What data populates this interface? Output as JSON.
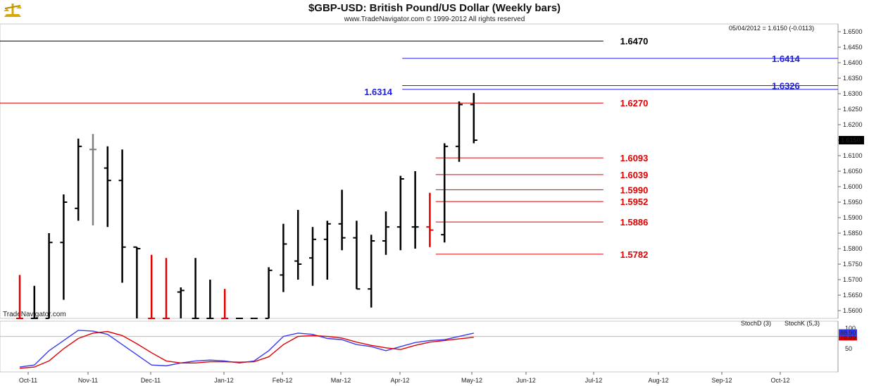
{
  "header": {
    "title": "$GBP-USD:  British Pound/US Dollar  (Weekly bars)",
    "subtitle": "www.TradeNavigator.com © 1999-2012 All rights reserved",
    "readout": "05/04/2012 = 1.6150 (-0.0113)",
    "watermark": "TradeNavigator.com",
    "logo_icon": "scales-logo-icon"
  },
  "chart_data": [
    {
      "type": "ohlc",
      "title": "$GBP-USD:  British Pound/US Dollar  (Weekly bars)",
      "ylim": [
        1.5575,
        1.6525
      ],
      "y_ticks": [
        "1.6500",
        "1.6450",
        "1.6400",
        "1.6350",
        "1.6300",
        "1.6250",
        "1.6200",
        "1.6150",
        "1.6100",
        "1.6050",
        "1.6000",
        "1.5950",
        "1.5900",
        "1.5850",
        "1.5800",
        "1.5750",
        "1.5700",
        "1.5650",
        "1.5600"
      ],
      "x_labels": [
        "Oct-11",
        "Nov-11",
        "Dec-11",
        "Jan-12",
        "Feb-12",
        "Mar-12",
        "Apr-12",
        "May-12",
        "Jun-12",
        "Jul-12",
        "Aug-12",
        "Sep-12",
        "Oct-12"
      ],
      "last_price": "1.6150",
      "bars": [
        {
          "date": "2011-09-30",
          "open": 1.5575,
          "high": 1.5715,
          "low": 1.5575,
          "close": 1.5575,
          "color": "#e00000"
        },
        {
          "date": "2011-10-07",
          "open": 1.5575,
          "high": 1.568,
          "low": 1.5575,
          "close": 1.5575,
          "color": "#000000"
        },
        {
          "date": "2011-10-14",
          "open": 1.5575,
          "high": 1.585,
          "low": 1.5575,
          "close": 1.582,
          "color": "#000000"
        },
        {
          "date": "2011-10-21",
          "open": 1.582,
          "high": 1.5975,
          "low": 1.5635,
          "close": 1.595,
          "color": "#000000"
        },
        {
          "date": "2011-10-28",
          "open": 1.593,
          "high": 1.6155,
          "low": 1.589,
          "close": 1.613,
          "color": "#000000"
        },
        {
          "date": "2011-11-04",
          "open": 1.612,
          "high": 1.617,
          "low": 1.5875,
          "close": 1.612,
          "color": "#808080"
        },
        {
          "date": "2011-11-11",
          "open": 1.606,
          "high": 1.613,
          "low": 1.587,
          "close": 1.602,
          "color": "#000000"
        },
        {
          "date": "2011-11-18",
          "open": 1.602,
          "high": 1.612,
          "low": 1.569,
          "close": 1.5805,
          "color": "#000000"
        },
        {
          "date": "2011-11-25",
          "open": 1.5805,
          "high": 1.5805,
          "low": 1.5575,
          "close": 1.58,
          "color": "#000000"
        },
        {
          "date": "2011-12-02",
          "open": 1.5575,
          "high": 1.578,
          "low": 1.5575,
          "close": 1.5575,
          "color": "#e00000"
        },
        {
          "date": "2011-12-09",
          "open": 1.5575,
          "high": 1.577,
          "low": 1.5575,
          "close": 1.5575,
          "color": "#e00000"
        },
        {
          "date": "2011-12-16",
          "open": 1.566,
          "high": 1.5675,
          "low": 1.5575,
          "close": 1.5665,
          "color": "#000000"
        },
        {
          "date": "2011-12-23",
          "open": 1.5575,
          "high": 1.577,
          "low": 1.5575,
          "close": 1.5575,
          "color": "#000000"
        },
        {
          "date": "2011-12-30",
          "open": 1.5575,
          "high": 1.57,
          "low": 1.5575,
          "close": 1.5575,
          "color": "#000000"
        },
        {
          "date": "2012-01-06",
          "open": 1.5575,
          "high": 1.567,
          "low": 1.5575,
          "close": 1.5575,
          "color": "#e00000"
        },
        {
          "date": "2012-01-13",
          "open": 1.5575,
          "high": 1.5575,
          "low": 1.5575,
          "close": 1.5575,
          "color": "#000000"
        },
        {
          "date": "2012-01-20",
          "open": 1.5575,
          "high": 1.5575,
          "low": 1.5575,
          "close": 1.5575,
          "color": "#000000"
        },
        {
          "date": "2012-01-27",
          "open": 1.5575,
          "high": 1.574,
          "low": 1.5575,
          "close": 1.573,
          "color": "#000000"
        },
        {
          "date": "2012-02-03",
          "open": 1.5715,
          "high": 1.588,
          "low": 1.566,
          "close": 1.5815,
          "color": "#000000"
        },
        {
          "date": "2012-02-10",
          "open": 1.576,
          "high": 1.5925,
          "low": 1.57,
          "close": 1.575,
          "color": "#000000"
        },
        {
          "date": "2012-02-17",
          "open": 1.577,
          "high": 1.587,
          "low": 1.568,
          "close": 1.583,
          "color": "#000000"
        },
        {
          "date": "2012-02-24",
          "open": 1.583,
          "high": 1.589,
          "low": 1.57,
          "close": 1.588,
          "color": "#000000"
        },
        {
          "date": "2012-03-02",
          "open": 1.588,
          "high": 1.599,
          "low": 1.5795,
          "close": 1.5835,
          "color": "#000000"
        },
        {
          "date": "2012-03-09",
          "open": 1.5835,
          "high": 1.589,
          "low": 1.567,
          "close": 1.567,
          "color": "#000000"
        },
        {
          "date": "2012-03-16",
          "open": 1.567,
          "high": 1.5845,
          "low": 1.561,
          "close": 1.5825,
          "color": "#000000"
        },
        {
          "date": "2012-03-23",
          "open": 1.5825,
          "high": 1.592,
          "low": 1.578,
          "close": 1.587,
          "color": "#000000"
        },
        {
          "date": "2012-03-30",
          "open": 1.587,
          "high": 1.6035,
          "low": 1.5795,
          "close": 1.6025,
          "color": "#000000"
        },
        {
          "date": "2012-04-06",
          "open": 1.587,
          "high": 1.605,
          "low": 1.58,
          "close": 1.587,
          "color": "#000000"
        },
        {
          "date": "2012-04-13",
          "open": 1.587,
          "high": 1.598,
          "low": 1.5805,
          "close": 1.586,
          "color": "#e00000"
        },
        {
          "date": "2012-04-20",
          "open": 1.5845,
          "high": 1.614,
          "low": 1.582,
          "close": 1.613,
          "color": "#000000"
        },
        {
          "date": "2012-04-27",
          "open": 1.613,
          "high": 1.6275,
          "low": 1.608,
          "close": 1.6265,
          "color": "#000000"
        },
        {
          "date": "2012-05-04",
          "open": 1.6265,
          "high": 1.6302,
          "low": 1.614,
          "close": 1.615,
          "color": "#000000"
        }
      ]
    },
    {
      "type": "line",
      "title": "Stochastic",
      "ylim": [
        0,
        100
      ],
      "y_ticks": [
        "100",
        "50"
      ],
      "y_markers": [
        {
          "value": "78.66",
          "color": "#e00000"
        },
        {
          "value": "88.90",
          "color": "#3a3af0"
        }
      ],
      "x_labels": [
        "Oct-11",
        "Nov-11",
        "Dec-11",
        "Jan-12",
        "Feb-12",
        "Mar-12",
        "Apr-12",
        "May-12",
        "Jun-12",
        "Jul-12",
        "Aug-12",
        "Sep-12",
        "Oct-12"
      ],
      "series": [
        {
          "name": "StochK (5,3)",
          "color": "#3a3af0",
          "values": [
            5,
            10,
            45,
            70,
            95,
            93,
            85,
            60,
            35,
            10,
            8,
            15,
            20,
            22,
            20,
            15,
            20,
            45,
            80,
            88,
            85,
            75,
            72,
            60,
            55,
            45,
            55,
            65,
            70,
            72,
            80,
            88
          ]
        },
        {
          "name": "StochD (3)",
          "color": "#e00000",
          "values": [
            2,
            5,
            20,
            50,
            75,
            88,
            92,
            82,
            62,
            40,
            20,
            15,
            15,
            18,
            18,
            17,
            18,
            30,
            60,
            80,
            82,
            80,
            76,
            66,
            58,
            52,
            48,
            58,
            66,
            70,
            74,
            78
          ]
        }
      ]
    }
  ],
  "levels": [
    {
      "value": 1.647,
      "label": "1.6470",
      "color": "#000000",
      "x_start": 0.0,
      "x_end": 0.72,
      "label_side": "right-of-line",
      "label_x": 0.74
    },
    {
      "value": 1.6414,
      "label": "1.6414",
      "color": "#2020e0",
      "x_start": 0.48,
      "x_end": 1.0,
      "label_side": "right"
    },
    {
      "value": 1.6326,
      "label": "1.6326",
      "color": "#2020e0",
      "x_start": 0.48,
      "x_end": 1.0,
      "label_side": "right"
    },
    {
      "value": 1.6314,
      "label": "1.6314",
      "color": "#2020e0",
      "x_start": 0.48,
      "x_end": 1.0,
      "label_side": "left"
    },
    {
      "value": 1.627,
      "label": "1.6270",
      "color": "#e00000",
      "x_start": 0.0,
      "x_end": 0.72,
      "label_side": "right-of-line",
      "label_x": 0.74
    },
    {
      "value": 1.6093,
      "label": "1.6093",
      "color": "#e00000",
      "x_start": 0.52,
      "x_end": 0.72,
      "label_side": "right-of-line",
      "label_x": 0.74
    },
    {
      "value": 1.6039,
      "label": "1.6039",
      "color": "#e00000",
      "x_start": 0.52,
      "x_end": 0.72,
      "label_side": "right-of-line",
      "label_x": 0.74
    },
    {
      "value": 1.599,
      "label": "1.5990",
      "color": "#e00000",
      "x_start": 0.52,
      "x_end": 0.72,
      "label_side": "right-of-line",
      "label_x": 0.74
    },
    {
      "value": 1.5952,
      "label": "1.5952",
      "color": "#e00000",
      "x_start": 0.52,
      "x_end": 0.72,
      "label_side": "right-of-line",
      "label_x": 0.74
    },
    {
      "value": 1.5886,
      "label": "1.5886",
      "color": "#e00000",
      "x_start": 0.52,
      "x_end": 0.72,
      "label_side": "right-of-line",
      "label_x": 0.74
    },
    {
      "value": 1.5782,
      "label": "1.5782",
      "color": "#e00000",
      "x_start": 0.52,
      "x_end": 0.72,
      "label_side": "right-of-line",
      "label_x": 0.74
    }
  ],
  "legend": {
    "stoch_d": "StochD (3)",
    "stoch_k": "StochK (5,3)"
  }
}
